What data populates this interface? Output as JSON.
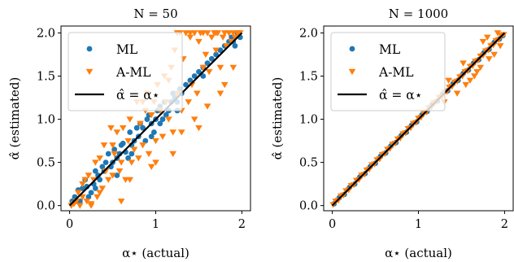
{
  "chart_data": [
    {
      "type": "scatter",
      "title": "N = 50",
      "xlabel": "α⋆ (actual)",
      "ylabel": "α̂ (estimated)",
      "xlim": [
        -0.1,
        2.1
      ],
      "ylim": [
        -0.06,
        2.08
      ],
      "xticks": [
        0,
        1,
        2
      ],
      "yticks": [
        0.0,
        0.5,
        1.0,
        1.5,
        2.0
      ],
      "legend_position": "top-left",
      "reference_line": {
        "label": "α̂ = α⋆",
        "x": [
          0,
          2
        ],
        "y": [
          0,
          2
        ],
        "color": "#000000"
      },
      "series": [
        {
          "name": "ML",
          "marker": "circle",
          "color": "#1f77b4",
          "x": [
            0.03,
            0.06,
            0.1,
            0.12,
            0.15,
            0.18,
            0.2,
            0.22,
            0.25,
            0.28,
            0.3,
            0.33,
            0.35,
            0.38,
            0.4,
            0.42,
            0.45,
            0.48,
            0.5,
            0.52,
            0.55,
            0.58,
            0.6,
            0.62,
            0.65,
            0.68,
            0.7,
            0.72,
            0.75,
            0.78,
            0.8,
            0.82,
            0.85,
            0.88,
            0.9,
            0.92,
            0.95,
            0.98,
            1.0,
            1.02,
            1.05,
            1.08,
            1.1,
            1.12,
            1.15,
            1.18,
            1.2,
            1.22,
            1.25,
            1.28,
            1.3,
            1.35,
            1.4,
            1.45,
            1.5,
            1.55,
            1.6,
            1.65,
            1.7,
            1.75,
            1.8,
            1.85,
            1.9,
            1.92,
            1.95,
            1.98,
            0.08,
            0.3,
            0.55,
            0.72,
            0.95,
            1.05,
            1.25,
            1.55,
            1.88
          ],
          "y": [
            0.05,
            0.1,
            0.18,
            0.05,
            0.2,
            0.3,
            0.22,
            0.1,
            0.15,
            0.25,
            0.4,
            0.35,
            0.3,
            0.45,
            0.4,
            0.5,
            0.6,
            0.45,
            0.5,
            0.65,
            0.55,
            0.6,
            0.7,
            0.72,
            0.62,
            0.55,
            0.85,
            0.7,
            0.75,
            0.9,
            0.8,
            0.95,
            0.9,
            0.75,
            1.0,
            1.05,
            0.95,
            0.85,
            1.0,
            1.1,
            1.15,
            1.0,
            1.2,
            1.05,
            1.1,
            1.2,
            1.3,
            1.25,
            1.2,
            1.35,
            1.3,
            1.4,
            1.45,
            1.5,
            1.55,
            1.6,
            1.65,
            1.7,
            1.75,
            1.8,
            1.85,
            1.9,
            1.9,
            1.85,
            2.0,
            1.95,
            0.05,
            0.2,
            0.35,
            0.6,
            0.8,
            0.95,
            1.1,
            1.5,
            1.95
          ]
        },
        {
          "name": "A-ML",
          "marker": "triangle-down",
          "color": "#ff7f0e",
          "x": [
            0.02,
            0.05,
            0.08,
            0.1,
            0.12,
            0.15,
            0.18,
            0.2,
            0.22,
            0.25,
            0.28,
            0.3,
            0.32,
            0.35,
            0.38,
            0.4,
            0.42,
            0.45,
            0.48,
            0.5,
            0.52,
            0.55,
            0.58,
            0.6,
            0.62,
            0.65,
            0.68,
            0.7,
            0.72,
            0.75,
            0.78,
            0.8,
            0.82,
            0.85,
            0.88,
            0.9,
            0.92,
            0.95,
            0.98,
            1.0,
            1.02,
            1.05,
            1.08,
            1.1,
            1.12,
            1.15,
            1.18,
            1.2,
            1.22,
            1.25,
            1.28,
            1.3,
            1.32,
            1.35,
            1.38,
            1.4,
            1.42,
            1.45,
            1.48,
            1.5,
            1.52,
            1.55,
            1.58,
            1.6,
            1.62,
            1.65,
            1.68,
            1.7,
            1.72,
            1.75,
            1.78,
            1.8,
            1.82,
            1.85,
            1.88,
            1.9,
            1.92,
            1.95,
            1.98,
            0.15,
            0.35,
            0.5,
            0.7,
            0.85,
            1.0,
            1.15,
            1.3,
            1.45,
            1.6,
            1.75,
            1.9,
            0.25,
            0.6,
            0.95,
            1.2,
            1.5,
            1.8,
            1.25,
            1.4,
            1.55,
            1.7
          ],
          "y": [
            0.0,
            0.02,
            0.05,
            0.15,
            0.0,
            0.1,
            0.3,
            0.05,
            0.35,
            0.02,
            0.3,
            0.5,
            0.1,
            0.55,
            0.2,
            0.7,
            0.4,
            0.3,
            0.9,
            0.35,
            0.6,
            0.85,
            0.4,
            0.5,
            0.9,
            0.3,
            0.75,
            1.0,
            0.5,
            0.65,
            1.2,
            0.55,
            0.95,
            0.7,
            1.1,
            1.3,
            0.6,
            1.05,
            1.2,
            0.75,
            1.4,
            1.1,
            0.8,
            1.5,
            1.2,
            1.0,
            1.6,
            0.85,
            1.8,
            1.3,
            2.0,
            1.1,
            1.7,
            2.0,
            1.2,
            1.95,
            1.4,
            2.0,
            1.3,
            1.9,
            2.0,
            1.6,
            1.75,
            2.0,
            1.55,
            1.95,
            2.0,
            1.8,
            2.0,
            1.6,
            1.95,
            2.0,
            1.85,
            2.0,
            1.9,
            2.0,
            1.95,
            2.0,
            2.0,
            0.25,
            0.15,
            0.7,
            0.3,
            1.2,
            0.5,
            1.45,
            0.85,
            1.0,
            1.15,
            1.3,
            1.6,
            0.0,
            0.05,
            0.45,
            0.6,
            0.9,
            1.4,
            2.0,
            2.0,
            2.0,
            2.0
          ]
        }
      ]
    },
    {
      "type": "scatter",
      "title": "N = 1000",
      "xlabel": "α⋆ (actual)",
      "ylabel": "α̂ (estimated)",
      "xlim": [
        -0.1,
        2.1
      ],
      "ylim": [
        -0.06,
        2.08
      ],
      "xticks": [
        0,
        1,
        2
      ],
      "yticks": [
        0.0,
        0.5,
        1.0,
        1.5,
        2.0
      ],
      "legend_position": "top-left",
      "reference_line": {
        "label": "α̂ = α⋆",
        "x": [
          0,
          2
        ],
        "y": [
          0,
          2
        ],
        "color": "#000000"
      },
      "series": [
        {
          "name": "ML",
          "marker": "circle",
          "color": "#1f77b4",
          "x": [
            0.02,
            0.08,
            0.14,
            0.2,
            0.26,
            0.32,
            0.38,
            0.44,
            0.5,
            0.56,
            0.62,
            0.68,
            0.74,
            0.8,
            0.86,
            0.92,
            0.98,
            1.04,
            1.1,
            1.16,
            1.22,
            1.28,
            1.34,
            1.4,
            1.46,
            1.52,
            1.58,
            1.64,
            1.7,
            1.76,
            1.82,
            1.88,
            1.94,
            1.98
          ],
          "y": [
            0.02,
            0.09,
            0.13,
            0.21,
            0.25,
            0.33,
            0.37,
            0.45,
            0.49,
            0.57,
            0.61,
            0.69,
            0.73,
            0.81,
            0.85,
            0.93,
            0.97,
            1.05,
            1.09,
            1.17,
            1.21,
            1.29,
            1.33,
            1.41,
            1.45,
            1.53,
            1.57,
            1.65,
            1.69,
            1.77,
            1.81,
            1.89,
            1.93,
            1.97
          ]
        },
        {
          "name": "A-ML",
          "marker": "triangle-down",
          "color": "#ff7f0e",
          "x": [
            0.01,
            0.04,
            0.07,
            0.1,
            0.13,
            0.16,
            0.19,
            0.22,
            0.25,
            0.28,
            0.31,
            0.34,
            0.37,
            0.4,
            0.43,
            0.46,
            0.49,
            0.52,
            0.55,
            0.58,
            0.61,
            0.64,
            0.67,
            0.7,
            0.73,
            0.76,
            0.79,
            0.82,
            0.85,
            0.88,
            0.91,
            0.94,
            0.97,
            1.0,
            1.03,
            1.06,
            1.09,
            1.12,
            1.15,
            1.18,
            1.21,
            1.24,
            1.27,
            1.3,
            1.33,
            1.36,
            1.39,
            1.42,
            1.45,
            1.48,
            1.51,
            1.54,
            1.57,
            1.6,
            1.63,
            1.66,
            1.69,
            1.72,
            1.75,
            1.78,
            1.81,
            1.84,
            1.87,
            1.9,
            1.93,
            1.96,
            1.99,
            1.35,
            1.45,
            1.52,
            1.6,
            1.68,
            1.75,
            1.82,
            1.88,
            1.95,
            1.3,
            1.55,
            1.65,
            1.72,
            1.8,
            1.92
          ],
          "y": [
            0.01,
            0.05,
            0.06,
            0.11,
            0.12,
            0.17,
            0.18,
            0.23,
            0.24,
            0.29,
            0.3,
            0.35,
            0.36,
            0.41,
            0.42,
            0.47,
            0.48,
            0.53,
            0.54,
            0.59,
            0.6,
            0.65,
            0.66,
            0.71,
            0.72,
            0.77,
            0.78,
            0.83,
            0.84,
            0.89,
            0.9,
            0.95,
            0.96,
            1.01,
            1.02,
            1.07,
            1.08,
            1.13,
            1.14,
            1.19,
            1.2,
            1.25,
            1.26,
            1.31,
            1.32,
            1.37,
            1.38,
            1.43,
            1.44,
            1.49,
            1.5,
            1.55,
            1.56,
            1.61,
            1.62,
            1.67,
            1.68,
            1.73,
            1.74,
            1.79,
            1.8,
            1.85,
            1.86,
            1.91,
            1.92,
            1.97,
            1.98,
            1.45,
            1.3,
            1.65,
            1.45,
            1.55,
            1.9,
            1.7,
            1.75,
            1.85,
            1.2,
            1.4,
            1.5,
            1.6,
            1.95,
            2.0
          ]
        }
      ]
    }
  ]
}
